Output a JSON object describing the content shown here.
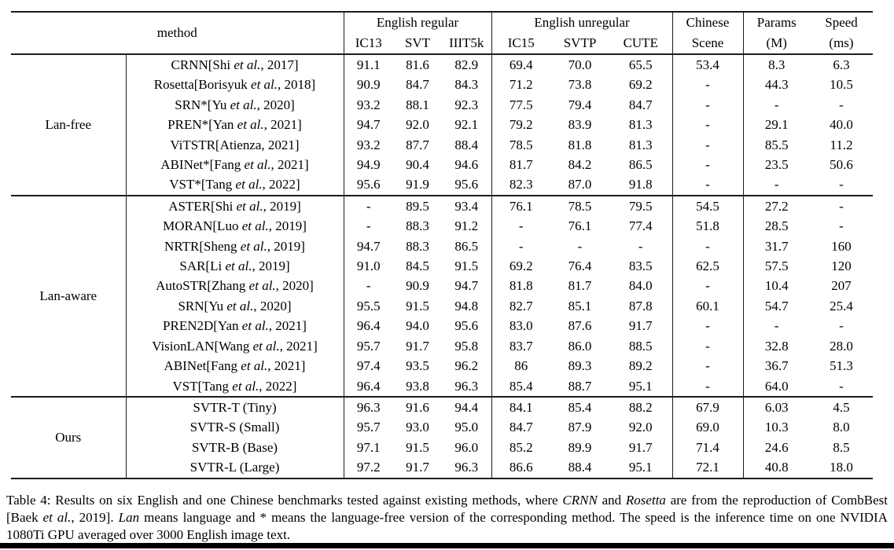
{
  "table": {
    "header": {
      "method_label": "method",
      "group_regular": "English regular",
      "group_unregular": "English unregular",
      "chinese_line1": "Chinese",
      "chinese_line2": "Scene",
      "params_line1": "Params",
      "params_line2": "(M)",
      "speed_line1": "Speed",
      "speed_line2": "(ms)",
      "subcols_regular": [
        "IC13",
        "SVT",
        "IIIT5k"
      ],
      "subcols_unregular": [
        "IC15",
        "SVTP",
        "CUTE"
      ]
    },
    "groups": [
      {
        "name": "Lan-free",
        "rows": [
          {
            "method": "CRNN[Shi {et al.}, 2017]",
            "values": [
              "91.1",
              "81.6",
              "82.9",
              "69.4",
              "70.0",
              "65.5",
              "53.4",
              "8.3",
              "6.3"
            ],
            "bold": []
          },
          {
            "method": "Rosetta[Borisyuk {et al.}, 2018]",
            "values": [
              "90.9",
              "84.7",
              "84.3",
              "71.2",
              "73.8",
              "69.2",
              "-",
              "44.3",
              "10.5"
            ],
            "bold": []
          },
          {
            "method": "SRN*[Yu {et al.}, 2020]",
            "values": [
              "93.2",
              "88.1",
              "92.3",
              "77.5",
              "79.4",
              "84.7",
              "-",
              "-",
              "-"
            ],
            "bold": []
          },
          {
            "method": "PREN*[Yan {et al.}, 2021]",
            "values": [
              "94.7",
              "92.0",
              "92.1",
              "79.2",
              "83.9",
              "81.3",
              "-",
              "29.1",
              "40.0"
            ],
            "bold": []
          },
          {
            "method": "ViTSTR[Atienza, 2021]",
            "values": [
              "93.2",
              "87.7",
              "88.4",
              "78.5",
              "81.8",
              "81.3",
              "-",
              "85.5",
              "11.2"
            ],
            "bold": []
          },
          {
            "method": "ABINet*[Fang {et al.}, 2021]",
            "values": [
              "94.9",
              "90.4",
              "94.6",
              "81.7",
              "84.2",
              "86.5",
              "-",
              "23.5",
              "50.6"
            ],
            "bold": []
          },
          {
            "method": "VST*[Tang {et al.}, 2022]",
            "values": [
              "95.6",
              "91.9",
              "95.6",
              "82.3",
              "87.0",
              "91.8",
              "-",
              "-",
              "-"
            ],
            "bold": []
          }
        ]
      },
      {
        "name": "Lan-aware",
        "rows": [
          {
            "method": "ASTER[Shi {et al.}, 2019]",
            "values": [
              "-",
              "89.5",
              "93.4",
              "76.1",
              "78.5",
              "79.5",
              "54.5",
              "27.2",
              "-"
            ],
            "bold": []
          },
          {
            "method": "MORAN[Luo {et al.}, 2019]",
            "values": [
              "-",
              "88.3",
              "91.2",
              "-",
              "76.1",
              "77.4",
              "51.8",
              "28.5",
              "-"
            ],
            "bold": []
          },
          {
            "method": "NRTR[Sheng {et al.}, 2019]",
            "values": [
              "94.7",
              "88.3",
              "86.5",
              "-",
              "-",
              "-",
              "-",
              "31.7",
              "160"
            ],
            "bold": []
          },
          {
            "method": "SAR[Li {et al.}, 2019]",
            "values": [
              "91.0",
              "84.5",
              "91.5",
              "69.2",
              "76.4",
              "83.5",
              "62.5",
              "57.5",
              "120"
            ],
            "bold": []
          },
          {
            "method": "AutoSTR[Zhang {et al.}, 2020]",
            "values": [
              "-",
              "90.9",
              "94.7",
              "81.8",
              "81.7",
              "84.0",
              "-",
              "10.4",
              "207"
            ],
            "bold": []
          },
          {
            "method": "SRN[Yu {et al.}, 2020]",
            "values": [
              "95.5",
              "91.5",
              "94.8",
              "82.7",
              "85.1",
              "87.8",
              "60.1",
              "54.7",
              "25.4"
            ],
            "bold": []
          },
          {
            "method": "PREN2D[Yan {et al.}, 2021]",
            "values": [
              "96.4",
              "94.0",
              "95.6",
              "83.0",
              "87.6",
              "91.7",
              "-",
              "-",
              "-"
            ],
            "bold": []
          },
          {
            "method": "VisionLAN[Wang {et al.}, 2021]",
            "values": [
              "95.7",
              "91.7",
              "95.8",
              "83.7",
              "86.0",
              "88.5",
              "-",
              "32.8",
              "28.0"
            ],
            "bold": []
          },
          {
            "method": "ABINet[Fang {et al.}, 2021]",
            "values": [
              "97.4",
              "93.5",
              "96.2",
              "86",
              "89.3",
              "89.2",
              "-",
              "36.7",
              "51.3"
            ],
            "bold": [
              0
            ]
          },
          {
            "method": "VST[Tang {et al.}, 2022]",
            "values": [
              "96.4",
              "93.8",
              "96.3",
              "85.4",
              "88.7",
              "95.1",
              "-",
              "64.0",
              "-"
            ],
            "bold": [
              1,
              2,
              5,
              6
            ]
          }
        ]
      },
      {
        "name": "Ours",
        "rows": [
          {
            "method": "SVTR-T (Tiny)",
            "values": [
              "96.3",
              "91.6",
              "94.4",
              "84.1",
              "85.4",
              "88.2",
              "67.9",
              "6.03",
              "4.5"
            ],
            "bold": []
          },
          {
            "method": "SVTR-S (Small)",
            "values": [
              "95.7",
              "93.0",
              "95.0",
              "84.7",
              "87.9",
              "92.0",
              "69.0",
              "10.3",
              "8.0"
            ],
            "bold": []
          },
          {
            "method": "SVTR-B (Base)",
            "values": [
              "97.1",
              "91.5",
              "96.0",
              "85.2",
              "89.9",
              "91.7",
              "71.4",
              "24.6",
              "8.5"
            ],
            "bold": [
              4
            ]
          },
          {
            "method": "SVTR-L (Large)",
            "values": [
              "97.2",
              "91.7",
              "96.3",
              "86.6",
              "88.4",
              "95.1",
              "72.1",
              "40.8",
              "18.0"
            ],
            "bold": [
              2,
              3,
              5,
              6
            ]
          }
        ]
      }
    ]
  },
  "caption": {
    "text": "Table 4: Results on six English and one Chinese benchmarks tested against existing methods, where {CRNN} and {Rosetta} are from the reproduction of CombBest [Baek {et al.}, 2019]. {Lan} means language and * means the language-free version of the corresponding method. The speed is the inference time on one NVIDIA 1080Ti GPU averaged over 3000 English image text."
  }
}
